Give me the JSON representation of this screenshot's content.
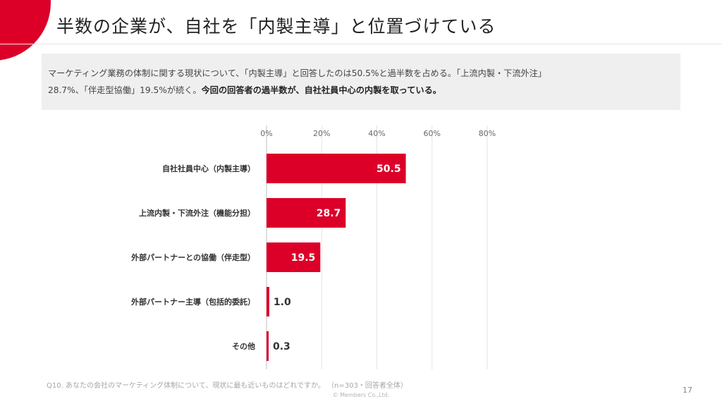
{
  "slide": {
    "title": "半数の企業が、自社を「内製主導」と位置づけている",
    "summary_line1": "マーケティング業務の体制に関する現状について、「内製主導」と回答したのは50.5%と過半数を占める。「上流内製・下流外注」",
    "summary_line2_regular": "28.7%、「伴走型協働」19.5%が続く。",
    "summary_line2_bold": "今回の回答者の過半数が、自社社員中心の内製を取っている。",
    "footnote": "Q10. あなたの会社のマーケティング体制について、現状に最も近いものはどれですか。 （n=303・回答者全体）",
    "copyright": "© Members Co.,Ltd.",
    "page_number": "17",
    "accent_color": "#dc0029"
  },
  "chart_data": {
    "type": "bar",
    "orientation": "horizontal",
    "categories": [
      "自社社員中心（内製主導）",
      "上流内製・下流外注（機能分担）",
      "外部パートナーとの協働（伴走型）",
      "外部パートナー主導（包括的委託）",
      "その他"
    ],
    "values": [
      50.5,
      28.7,
      19.5,
      1.0,
      0.3
    ],
    "value_labels": [
      "50.5",
      "28.7",
      "19.5",
      "1.0",
      "0.3"
    ],
    "xlim": [
      0,
      80
    ],
    "x_ticks": [
      "0%",
      "20%",
      "40%",
      "60%",
      "80%"
    ],
    "tick_values": [
      0,
      20,
      40,
      60,
      80
    ],
    "grid": true,
    "bar_color": "#dc0029",
    "title": "",
    "xlabel": "",
    "ylabel": ""
  }
}
